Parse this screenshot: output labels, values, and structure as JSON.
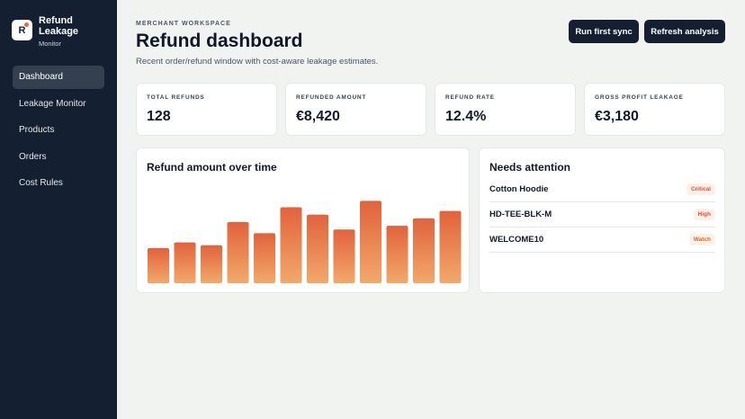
{
  "sidebar": {
    "brand": {
      "mark": "R",
      "name": "Refund Leakage",
      "sub": "Monitor"
    },
    "items": [
      {
        "label": "Dashboard",
        "active": true
      },
      {
        "label": "Leakage Monitor",
        "active": false
      },
      {
        "label": "Products",
        "active": false
      },
      {
        "label": "Orders",
        "active": false
      },
      {
        "label": "Cost Rules",
        "active": false
      }
    ]
  },
  "header": {
    "eyebrow": "MERCHANT WORKSPACE",
    "title": "Refund dashboard",
    "subtitle": "Recent order/refund window with cost-aware leakage estimates.",
    "buttons": {
      "sync": "Run first sync",
      "refresh": "Refresh analysis"
    }
  },
  "kpis": [
    {
      "label": "TOTAL REFUNDS",
      "value": "128"
    },
    {
      "label": "REFUNDED AMOUNT",
      "value": "€8,420"
    },
    {
      "label": "REFUND RATE",
      "value": "12.4%"
    },
    {
      "label": "GROSS PROFIT LEAKAGE",
      "value": "€3,180"
    }
  ],
  "chart": {
    "title": "Refund amount over time"
  },
  "chart_data": {
    "type": "bar",
    "title": "Refund amount over time",
    "values": [
      38,
      44,
      41,
      66,
      54,
      82,
      74,
      58,
      89,
      62,
      70,
      78
    ],
    "ylim": [
      0,
      100
    ],
    "gradient": {
      "top": "#e1623c",
      "bottom": "#f2a96a"
    }
  },
  "attention": {
    "title": "Needs attention",
    "items": [
      {
        "name": "Cotton Hoodie",
        "badge": "Critical",
        "color": "#e0502c"
      },
      {
        "name": "HD-TEE-BLK-M",
        "badge": "High",
        "color": "#e0502c"
      },
      {
        "name": "WELCOME10",
        "badge": "Watch",
        "color": "#cf6a25"
      }
    ]
  },
  "colors": {
    "sidebar": "#142032",
    "accent": "#e8683f",
    "button": "#142032",
    "background": "#f1f3f1"
  }
}
